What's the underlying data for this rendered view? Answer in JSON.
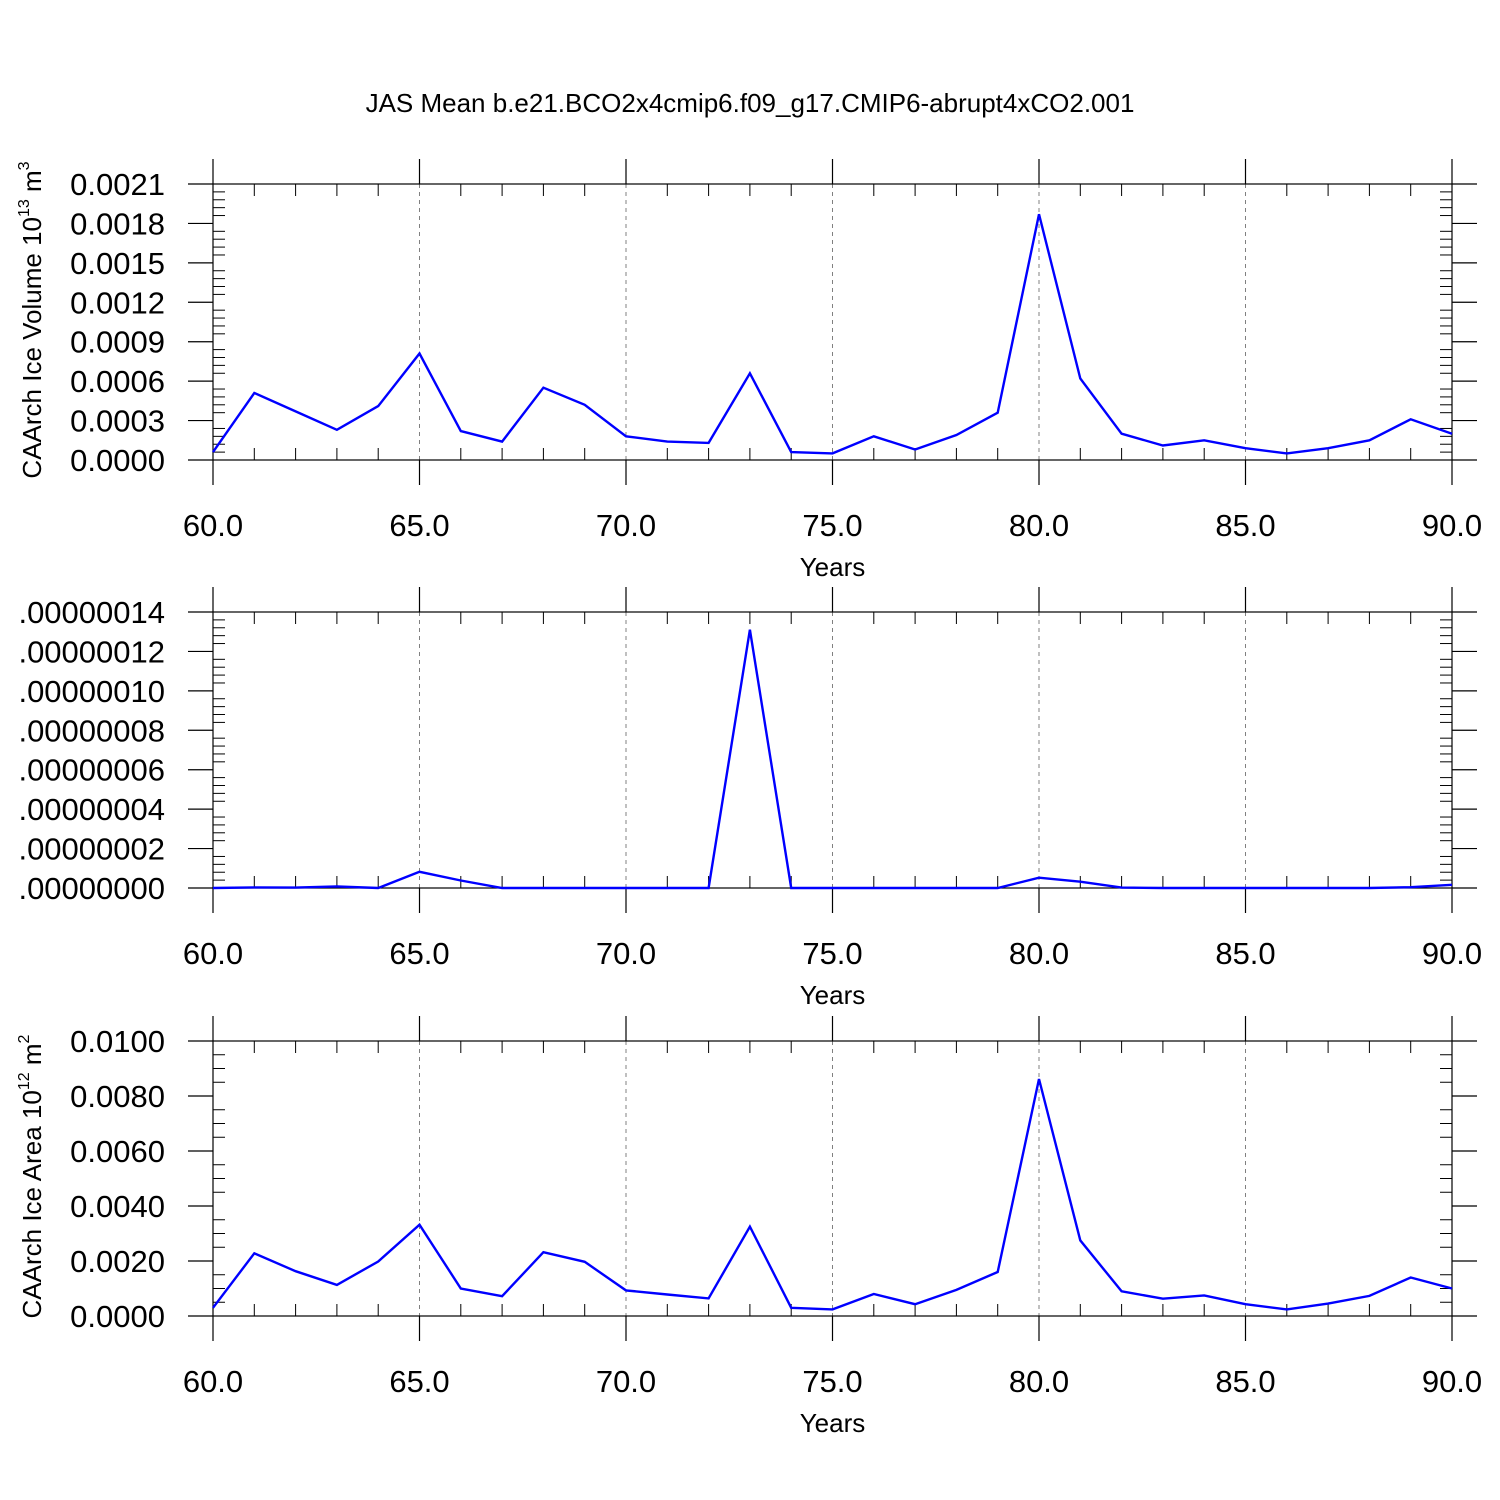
{
  "title": "JAS Mean b.e21.BCO2x4cmip6.f09_g17.CMIP6-abrupt4xCO2.001",
  "colors": {
    "line": "#0000ff",
    "axis": "#000000",
    "grid": "#808080"
  },
  "chart_data": [
    {
      "type": "line",
      "ylabel": "CAArch Ice Volume 10",
      "ylabel_exp": "13",
      "ylabel_unit": " m",
      "ylabel_unit_exp": "3",
      "xlabel": "Years",
      "xlim": [
        60,
        90
      ],
      "ylim": [
        0.0,
        0.0021
      ],
      "yticks": [
        0.0,
        0.0003,
        0.0006,
        0.0009,
        0.0012,
        0.0015,
        0.0018,
        0.0021
      ],
      "ytick_labels": [
        "0.0000",
        "0.0003",
        "0.0006",
        "0.0009",
        "0.0012",
        "0.0015",
        "0.0018",
        "0.0021"
      ],
      "xticks": [
        60,
        65,
        70,
        75,
        80,
        85,
        90
      ],
      "xtick_labels": [
        "60.0",
        "65.0",
        "70.0",
        "75.0",
        "80.0",
        "85.0",
        "90.0"
      ],
      "grid": "vertical dashed at major x ticks",
      "x": [
        60,
        61,
        62,
        63,
        64,
        65,
        66,
        67,
        68,
        69,
        70,
        71,
        72,
        73,
        74,
        75,
        76,
        77,
        78,
        79,
        80,
        81,
        82,
        83,
        84,
        85,
        86,
        87,
        88,
        89,
        90
      ],
      "series": [
        {
          "values": [
            6e-05,
            0.00051,
            0.00037,
            0.00023,
            0.00041,
            0.00081,
            0.00022,
            0.00014,
            0.00055,
            0.00042,
            0.00018,
            0.00014,
            0.00013,
            0.00066,
            6e-05,
            5e-05,
            0.00018,
            8e-05,
            0.00019,
            0.00036,
            0.00187,
            0.00062,
            0.0002,
            0.00011,
            0.00015,
            9e-05,
            5e-05,
            9e-05,
            0.00015,
            0.00031,
            0.0002
          ]
        }
      ]
    },
    {
      "type": "line",
      "xlabel": "Years",
      "xlim": [
        60,
        90
      ],
      "ylim": [
        0.0,
        1.4e-07
      ],
      "yticks": [
        0.0,
        2e-08,
        4e-08,
        6e-08,
        8e-08,
        1e-07,
        1.2e-07,
        1.4e-07
      ],
      "ytick_labels": [
        ".00000000",
        ".00000002",
        ".00000004",
        ".00000006",
        ".00000008",
        ".00000010",
        ".00000012",
        ".00000014"
      ],
      "xticks": [
        60,
        65,
        70,
        75,
        80,
        85,
        90
      ],
      "xtick_labels": [
        "60.0",
        "65.0",
        "70.0",
        "75.0",
        "80.0",
        "85.0",
        "90.0"
      ],
      "grid": "vertical dashed at major x ticks",
      "x": [
        60,
        61,
        62,
        63,
        64,
        65,
        66,
        67,
        68,
        69,
        70,
        71,
        72,
        73,
        74,
        75,
        76,
        77,
        78,
        79,
        80,
        81,
        82,
        83,
        84,
        85,
        86,
        87,
        88,
        89,
        90
      ],
      "series": [
        {
          "values": [
            0.0,
            3e-10,
            2e-10,
            8e-10,
            0.0,
            8.2e-09,
            3.8e-09,
            0.0,
            0.0,
            0.0,
            0.0,
            0.0,
            0.0,
            1.31e-07,
            0.0,
            0.0,
            0.0,
            0.0,
            0.0,
            0.0,
            5.2e-09,
            3.2e-09,
            2e-10,
            0.0,
            0.0,
            0.0,
            0.0,
            0.0,
            0.0,
            4e-10,
            1.6e-09
          ]
        }
      ]
    },
    {
      "type": "line",
      "ylabel": "CAArch Ice Area 10",
      "ylabel_exp": "12",
      "ylabel_unit": " m",
      "ylabel_unit_exp": "2",
      "xlabel": "Years",
      "xlim": [
        60,
        90
      ],
      "ylim": [
        0.0,
        0.01
      ],
      "yticks": [
        0.0,
        0.002,
        0.004,
        0.006,
        0.008,
        0.01
      ],
      "ytick_labels": [
        "0.0000",
        "0.0020",
        "0.0040",
        "0.0060",
        "0.0080",
        "0.0100"
      ],
      "xticks": [
        60,
        65,
        70,
        75,
        80,
        85,
        90
      ],
      "xtick_labels": [
        "60.0",
        "65.0",
        "70.0",
        "75.0",
        "80.0",
        "85.0",
        "90.0"
      ],
      "grid": "vertical dashed at major x ticks",
      "x": [
        60,
        61,
        62,
        63,
        64,
        65,
        66,
        67,
        68,
        69,
        70,
        71,
        72,
        73,
        74,
        75,
        76,
        77,
        78,
        79,
        80,
        81,
        82,
        83,
        84,
        85,
        86,
        87,
        88,
        89,
        90
      ],
      "series": [
        {
          "values": [
            0.0003,
            0.00228,
            0.00163,
            0.00113,
            0.00198,
            0.00332,
            0.001,
            0.00072,
            0.00232,
            0.00197,
            0.00093,
            0.00078,
            0.00064,
            0.00325,
            0.0003,
            0.00024,
            0.0008,
            0.00043,
            0.00095,
            0.0016,
            0.00862,
            0.00275,
            0.0009,
            0.00063,
            0.00075,
            0.00043,
            0.00024,
            0.00045,
            0.00073,
            0.0014,
            0.001
          ]
        }
      ]
    }
  ]
}
